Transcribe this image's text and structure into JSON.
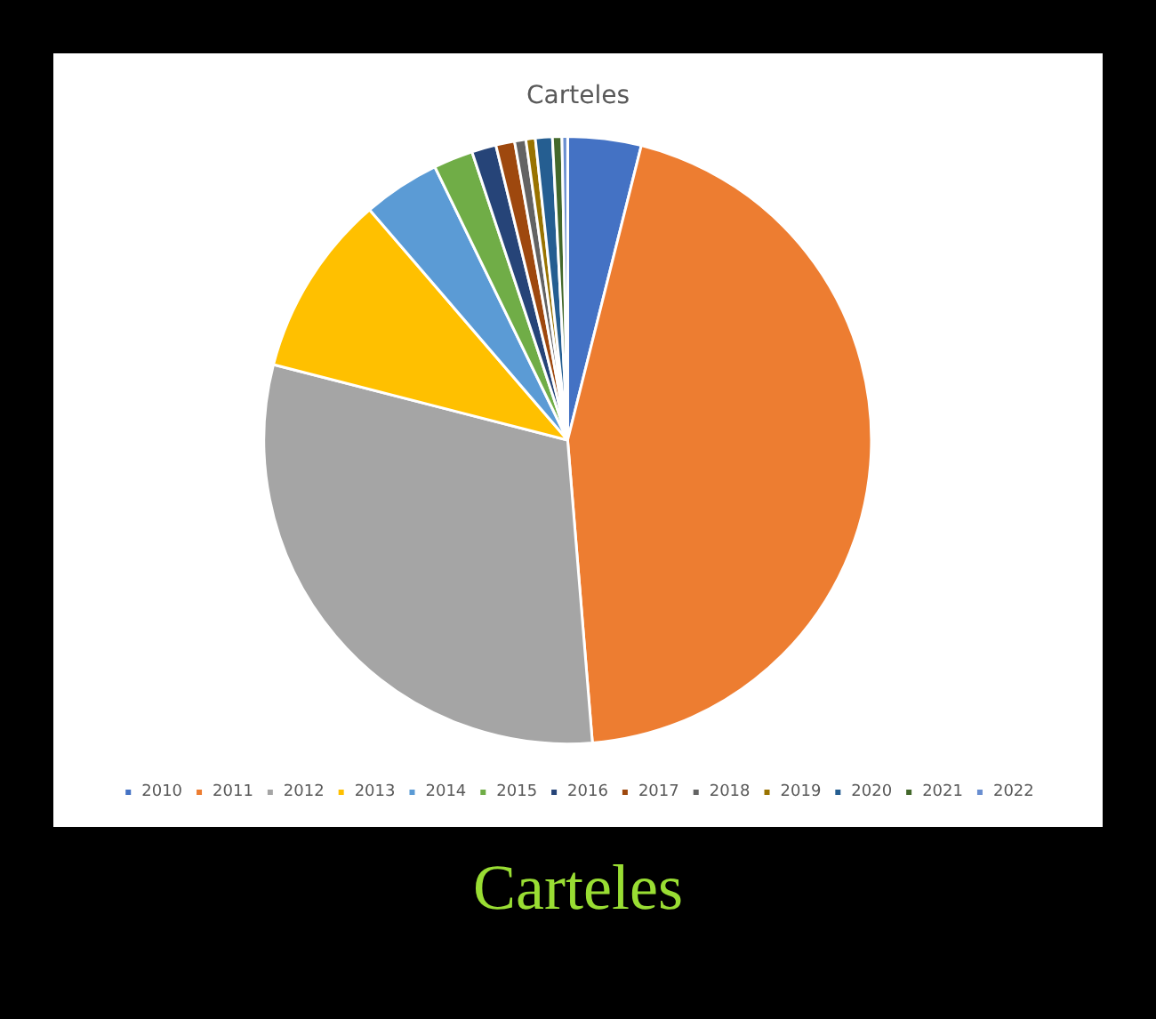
{
  "chart_data": {
    "type": "pie",
    "title": "Carteles",
    "categories": [
      "2010",
      "2011",
      "2012",
      "2013",
      "2014",
      "2015",
      "2016",
      "2017",
      "2018",
      "2019",
      "2020",
      "2021",
      "2022"
    ],
    "values": [
      3.9,
      44.8,
      30.3,
      9.7,
      4.1,
      2.1,
      1.3,
      1.0,
      0.6,
      0.5,
      0.9,
      0.5,
      0.3
    ],
    "colors": [
      "#4472c4",
      "#ed7d31",
      "#a5a5a5",
      "#ffc000",
      "#5b9bd5",
      "#70ad47",
      "#264478",
      "#9e480e",
      "#636363",
      "#997300",
      "#255e91",
      "#43682b",
      "#698ed0"
    ],
    "legend": "bottom",
    "annotations": [
      "Carteles"
    ]
  }
}
